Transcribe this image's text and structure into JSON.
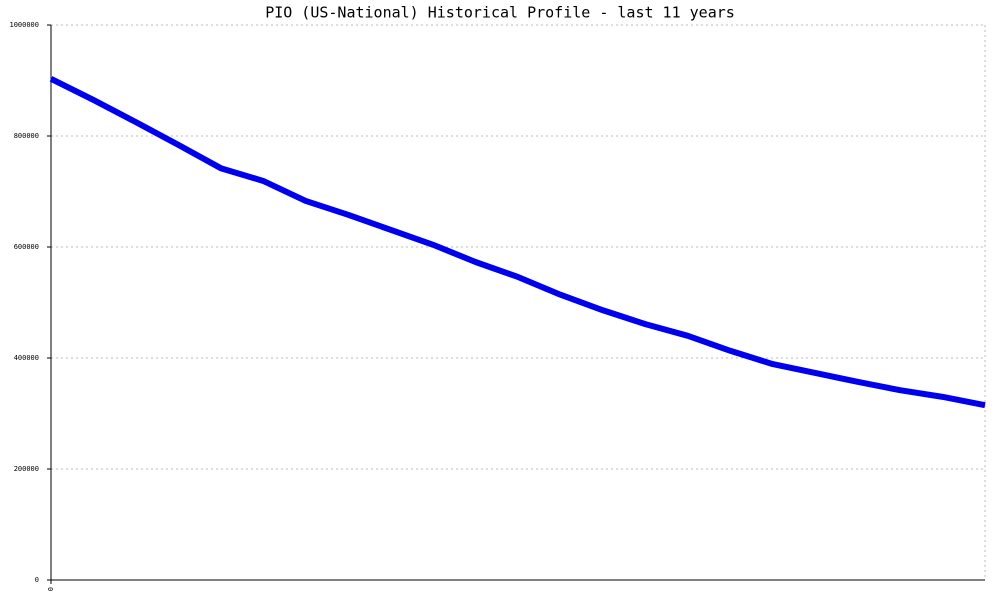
{
  "chart_data": {
    "type": "line",
    "title": "PIO (US-National) Historical Profile - last 11 years",
    "x": [
      0,
      1,
      2,
      3,
      4,
      5,
      6,
      7,
      8,
      9,
      10,
      11,
      12,
      13,
      14,
      15,
      16,
      17,
      18,
      19,
      20,
      21,
      22
    ],
    "series": [
      {
        "color": "#0000ee",
        "values": [
          903000,
          865000,
          825000,
          784000,
          742000,
          719000,
          683000,
          658000,
          631000,
          604000,
          573000,
          546000,
          514000,
          486000,
          461000,
          440000,
          413000,
          389000,
          373000,
          357000,
          342000,
          330000,
          315000
        ]
      }
    ],
    "xlim": [
      0,
      22
    ],
    "xticks": [
      0
    ],
    "ylim": [
      0,
      1000000
    ],
    "yticks": [
      0,
      200000,
      400000,
      600000,
      800000,
      1000000
    ],
    "grid": true
  }
}
